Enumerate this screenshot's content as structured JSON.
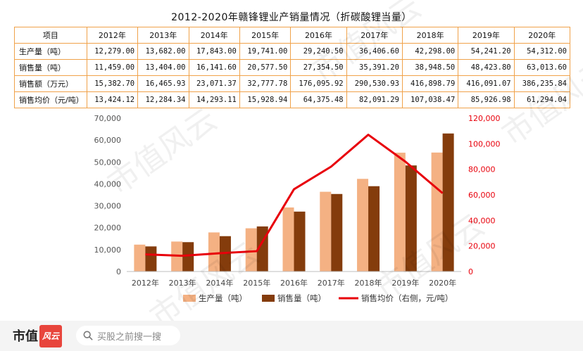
{
  "table": {
    "title": "2012-2020年赣锋锂业产销量情况（折碳酸锂当量）",
    "header_label": "项目",
    "years": [
      "2012年",
      "2013年",
      "2014年",
      "2015年",
      "2016年",
      "2017年",
      "2018年",
      "2019年",
      "2020年"
    ],
    "rows": [
      {
        "label": "生产量（吨）",
        "values": [
          "12,279.00",
          "13,682.00",
          "17,843.00",
          "19,741.00",
          "29,240.50",
          "36,406.60",
          "42,298.00",
          "54,241.20",
          "54,312.00"
        ]
      },
      {
        "label": "销售量（吨）",
        "values": [
          "11,459.00",
          "13,404.00",
          "16,141.60",
          "20,577.50",
          "27,354.50",
          "35,391.20",
          "38,948.50",
          "48,423.80",
          "63,013.60"
        ]
      },
      {
        "label": "销售额（万元）",
        "values": [
          "15,382.70",
          "16,465.93",
          "23,071.37",
          "32,777.78",
          "176,095.92",
          "290,530.93",
          "416,898.79",
          "416,091.07",
          "386,235.84"
        ]
      },
      {
        "label": "销售均价（元/吨）",
        "values": [
          "13,424.12",
          "12,284.34",
          "14,293.11",
          "15,928.94",
          "64,375.48",
          "82,091.29",
          "107,038.47",
          "85,926.98",
          "61,294.04"
        ]
      }
    ]
  },
  "chart_data": {
    "type": "bar",
    "categories": [
      "2012年",
      "2013年",
      "2014年",
      "2015年",
      "2016年",
      "2017年",
      "2018年",
      "2019年",
      "2020年"
    ],
    "series": [
      {
        "name": "生产量（吨）",
        "kind": "bar",
        "axis": "left",
        "color": "#f4b183",
        "values": [
          12279,
          13682,
          17843,
          19741,
          29240.5,
          36406.6,
          42298,
          54241.2,
          54312
        ]
      },
      {
        "name": "销售量（吨）",
        "kind": "bar",
        "axis": "left",
        "color": "#843c0c",
        "values": [
          11459,
          13404,
          16141.6,
          20577.5,
          27354.5,
          35391.2,
          38948.5,
          48423.8,
          63013.6
        ]
      },
      {
        "name": "销售均价（右侧，元/吨）",
        "kind": "line",
        "axis": "right",
        "color": "#e8000b",
        "values": [
          13424.12,
          12284.34,
          14293.11,
          15928.94,
          64375.48,
          82091.29,
          107038.47,
          85926.98,
          61294.04
        ]
      }
    ],
    "y_left": {
      "min": 0,
      "max": 70000,
      "ticks": [
        "0",
        "10,000",
        "20,000",
        "30,000",
        "40,000",
        "50,000",
        "60,000",
        "70,000"
      ]
    },
    "y_right": {
      "min": 0,
      "max": 120000,
      "ticks": [
        "0",
        "20,000",
        "40,000",
        "60,000",
        "80,000",
        "100,000",
        "120,000"
      ],
      "color": "#e8000b"
    },
    "legend_position": "bottom",
    "grid": false
  },
  "watermark": "市值风云",
  "footer": {
    "brand": "市值",
    "brand_mark": "风云",
    "search_placeholder": "买股之前搜一搜"
  }
}
